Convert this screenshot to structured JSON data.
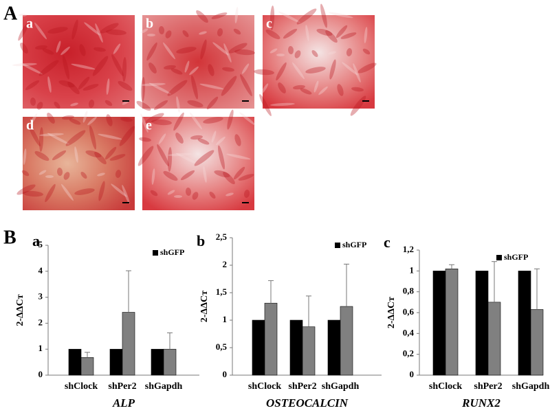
{
  "panels": {
    "A": "A",
    "B": "B"
  },
  "images": [
    "a",
    "b",
    "c",
    "d",
    "e"
  ],
  "chart_data": [
    {
      "type": "bar",
      "panel_label": "a",
      "y_label": "2-ΔΔCт",
      "x_label": "ALP",
      "categories": [
        "shClock",
        "shPer2",
        "shGapdh"
      ],
      "series": [
        {
          "name": "shGFP",
          "color": "#000000",
          "values": [
            1,
            1,
            1
          ]
        },
        {
          "color": "#808080",
          "values": [
            0.68,
            2.42,
            1.0
          ],
          "errors": [
            0.2,
            1.6,
            0.63
          ]
        }
      ],
      "ylim": [
        0,
        5
      ],
      "yticks": [
        0,
        1,
        2,
        3,
        4,
        5
      ]
    },
    {
      "type": "bar",
      "panel_label": "b",
      "y_label": "2-ΔΔCт",
      "x_label": "OSTEOCALCIN",
      "categories": [
        "shClock",
        "shPer2",
        "shGapdh"
      ],
      "series": [
        {
          "name": "shGFP",
          "color": "#000000",
          "values": [
            1,
            1,
            1
          ]
        },
        {
          "color": "#808080",
          "values": [
            1.31,
            0.88,
            1.25
          ],
          "errors": [
            0.41,
            0.56,
            0.77
          ]
        }
      ],
      "ylim": [
        0,
        2.5
      ],
      "yticks": [
        0,
        {
          "value": 0.5,
          "label": "0,5"
        },
        1,
        {
          "value": 1.5,
          "label": "1,5"
        },
        2,
        {
          "value": 2.5,
          "label": "2,5"
        }
      ]
    },
    {
      "type": "bar",
      "panel_label": "c",
      "y_label": "2-ΔΔCт",
      "x_label": "RUNX2",
      "categories": [
        "shClock",
        "shPer2",
        "shGapdh"
      ],
      "series": [
        {
          "name": "shGFP",
          "color": "#000000",
          "values": [
            1,
            1,
            1
          ]
        },
        {
          "color": "#808080",
          "values": [
            1.02,
            0.7,
            0.63
          ],
          "errors": [
            0.04,
            0.39,
            0.39
          ]
        }
      ],
      "ylim": [
        0,
        1.2
      ],
      "yticks": [
        0,
        {
          "value": 0.2,
          "label": "0,2"
        },
        {
          "value": 0.4,
          "label": "0,4"
        },
        {
          "value": 0.6,
          "label": "0,6"
        },
        {
          "value": 0.8,
          "label": "0,8"
        },
        1,
        {
          "value": 1.2,
          "label": "1,2"
        }
      ]
    }
  ]
}
